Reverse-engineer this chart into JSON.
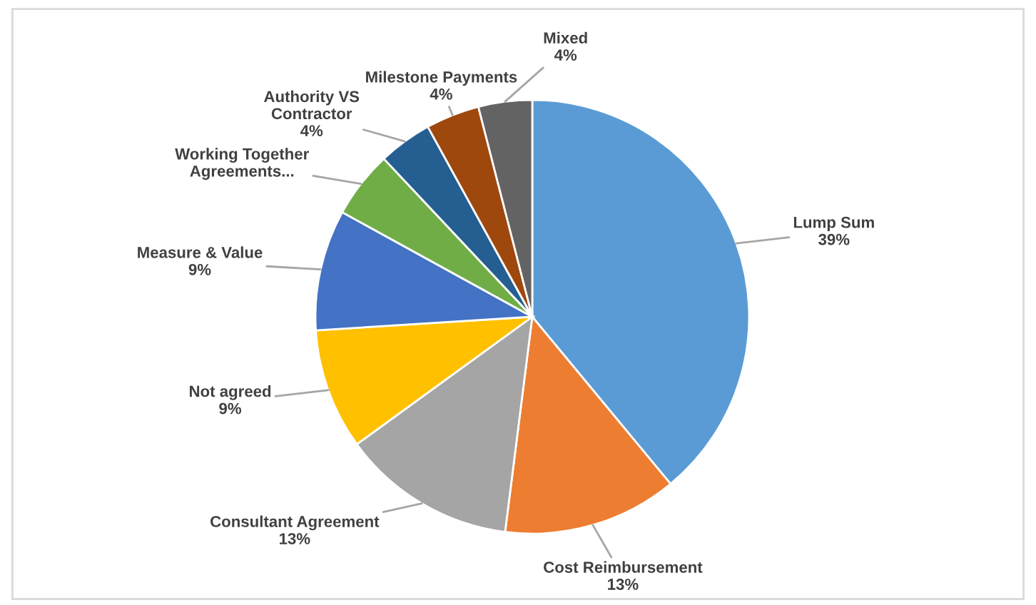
{
  "chart_data": {
    "type": "pie",
    "categories": [
      "Lump Sum",
      "Cost Reimbursement",
      "Consultant Agreement",
      "Not agreed",
      "Measure & Value",
      "Working Together\nAgreements...",
      "Authority VS\nContractor",
      "Milestone Payments",
      "Mixed"
    ],
    "values": [
      39,
      13,
      13,
      9,
      9,
      5,
      4,
      4,
      4
    ],
    "value_labels": [
      "39%",
      "13%",
      "13%",
      "9%",
      "9%",
      null,
      "4%",
      "4%",
      "4%"
    ],
    "colors": [
      "#5b9bd5",
      "#ed7d31",
      "#a5a5a5",
      "#ffc000",
      "#4472c4",
      "#70ad47",
      "#255e91",
      "#9e480e",
      "#636363"
    ]
  }
}
